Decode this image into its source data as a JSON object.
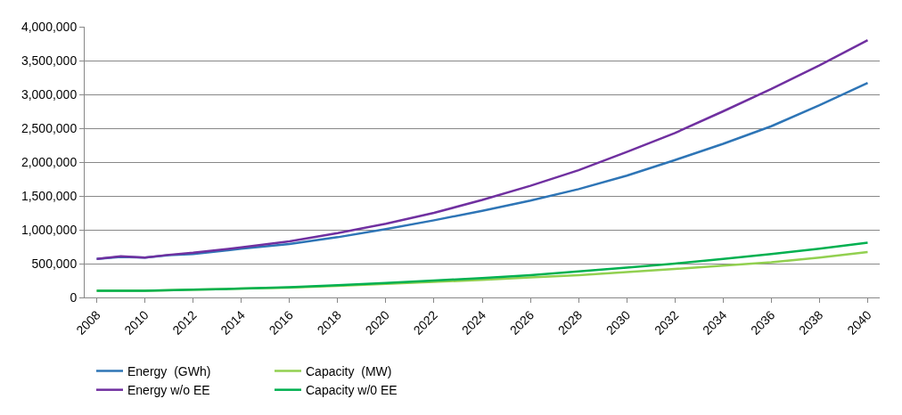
{
  "chart_data": {
    "type": "line",
    "ylim": [
      0,
      4000000
    ],
    "yticks": [
      {
        "value": 0,
        "label": "0"
      },
      {
        "value": 500000,
        "label": "500,000"
      },
      {
        "value": 1000000,
        "label": "1,000,000"
      },
      {
        "value": 1500000,
        "label": "1,500,000"
      },
      {
        "value": 2000000,
        "label": "2,000,000"
      },
      {
        "value": 2500000,
        "label": "2,500,000"
      },
      {
        "value": 3000000,
        "label": "3,000,000"
      },
      {
        "value": 3500000,
        "label": "3,500,000"
      },
      {
        "value": 4000000,
        "label": "4,000,000"
      }
    ],
    "xlim": [
      2007.5,
      2040.5
    ],
    "xticks": [
      2008,
      2010,
      2012,
      2014,
      2016,
      2018,
      2020,
      2022,
      2024,
      2026,
      2028,
      2030,
      2032,
      2034,
      2036,
      2038,
      2040
    ],
    "grid": "y",
    "legend": "bottom",
    "marker": "none",
    "line_style": "solid",
    "series": [
      {
        "name": "Energy  (GWh)",
        "color": "#2e75b6",
        "x": [
          2008,
          2009,
          2010,
          2011,
          2012,
          2014,
          2016,
          2018,
          2020,
          2022,
          2024,
          2026,
          2028,
          2030,
          2032,
          2034,
          2036,
          2038,
          2040
        ],
        "values": [
          570000,
          600000,
          590000,
          625000,
          640000,
          720000,
          790000,
          890000,
          1010000,
          1140000,
          1280000,
          1430000,
          1600000,
          1800000,
          2030000,
          2270000,
          2530000,
          2840000,
          3170000
        ]
      },
      {
        "name": "Capacity  (MW)",
        "color": "#92d050",
        "x": [
          2008,
          2010,
          2012,
          2014,
          2016,
          2018,
          2020,
          2022,
          2024,
          2026,
          2028,
          2030,
          2032,
          2034,
          2036,
          2038,
          2040
        ],
        "values": [
          100000,
          100000,
          115000,
          130000,
          145000,
          170000,
          200000,
          230000,
          260000,
          295000,
          330000,
          375000,
          420000,
          470000,
          520000,
          590000,
          670000
        ]
      },
      {
        "name": "Energy w/o EE",
        "color": "#7030a0",
        "x": [
          2008,
          2009,
          2010,
          2011,
          2012,
          2014,
          2016,
          2018,
          2020,
          2022,
          2024,
          2026,
          2028,
          2030,
          2032,
          2034,
          2036,
          2038,
          2040
        ],
        "values": [
          570000,
          610000,
          590000,
          630000,
          660000,
          740000,
          830000,
          950000,
          1090000,
          1250000,
          1440000,
          1650000,
          1880000,
          2150000,
          2430000,
          2750000,
          3080000,
          3430000,
          3800000
        ]
      },
      {
        "name": "Capacity w/0 EE",
        "color": "#00b050",
        "x": [
          2008,
          2010,
          2012,
          2014,
          2016,
          2018,
          2020,
          2022,
          2024,
          2026,
          2028,
          2030,
          2032,
          2034,
          2036,
          2038,
          2040
        ],
        "values": [
          100000,
          100000,
          115000,
          130000,
          150000,
          180000,
          215000,
          250000,
          285000,
          330000,
          385000,
          440000,
          500000,
          570000,
          640000,
          720000,
          810000
        ]
      }
    ]
  }
}
